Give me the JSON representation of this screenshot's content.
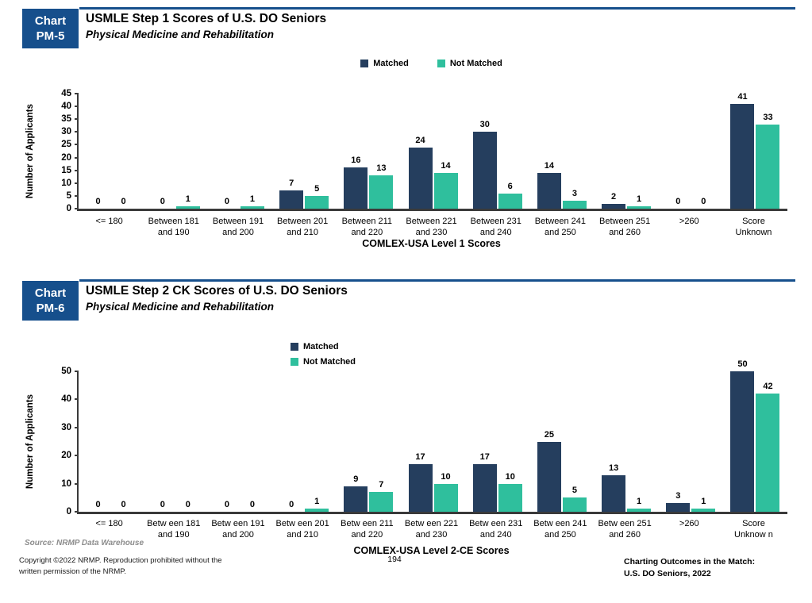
{
  "page": {
    "footer": {
      "source": "Source: NRMP Data Warehouse",
      "copyright": [
        "Copyright ©2022 NRMP. Reproduction prohibited without the",
        "written permission of the NRMP."
      ],
      "right_note": [
        "Charting Outcomes in the Match:",
        "U.S. DO Seniors, 2022"
      ],
      "page_number": "194"
    },
    "colors": {
      "header_blue": "#164F8C",
      "matched": "#253E5E",
      "not_matched": "#2FBF9D",
      "axis": "#3A3A3A"
    }
  },
  "chart_data": [
    {
      "type": "bar",
      "tag_top": "Chart",
      "tag_bottom": "PM-5",
      "title": "USMLE Step 1 Scores of U.S. DO Seniors",
      "subtitle": "Physical Medicine and Rehabilitation",
      "ylabel": "Number of Applicants",
      "xlabel": "COMLEX-USA Level 1 Scores",
      "ylim": [
        0,
        45
      ],
      "ytick_step": 5,
      "grid": false,
      "legend_position": "top-center-horizontal",
      "categories": [
        "<= 180",
        "Between 181 and 190",
        "Between 191 and 200",
        "Between 201 and 210",
        "Between 211 and 220",
        "Between 221 and 230",
        "Between 231 and 240",
        "Between 241 and 250",
        "Between 251 and 260",
        ">260",
        "Score Unknown"
      ],
      "categories_display": [
        [
          "<= 180"
        ],
        [
          "Between 181",
          "and 190"
        ],
        [
          "Between 191",
          "and 200"
        ],
        [
          "Between 201",
          "and 210"
        ],
        [
          "Between 211",
          "and 220"
        ],
        [
          "Between 221",
          "and 230"
        ],
        [
          "Between 231",
          "and 240"
        ],
        [
          "Between 241",
          "and 250"
        ],
        [
          "Between 251",
          "and 260"
        ],
        [
          ">260"
        ],
        [
          "Score",
          "Unknown"
        ]
      ],
      "series": [
        {
          "name": "Matched",
          "color": "#253E5E",
          "values": [
            0,
            0,
            0,
            7,
            16,
            24,
            30,
            14,
            2,
            0,
            41
          ]
        },
        {
          "name": "Not Matched",
          "color": "#2FBF9D",
          "values": [
            0,
            1,
            1,
            5,
            13,
            14,
            6,
            3,
            1,
            0,
            33
          ]
        }
      ]
    },
    {
      "type": "bar",
      "tag_top": "Chart",
      "tag_bottom": "PM-6",
      "title": "USMLE Step 2 CK Scores of U.S. DO Seniors",
      "subtitle": "Physical Medicine and Rehabilitation",
      "ylabel": "Number of Applicants",
      "xlabel": "COMLEX-USA Level 2-CE Scores",
      "ylim": [
        0,
        50
      ],
      "ytick_step": 10,
      "grid": false,
      "legend_position": "top-left-stacked",
      "categories": [
        "<= 180",
        "Betw een 181 and 190",
        "Betw een 191 and 200",
        "Betw een 201 and 210",
        "Betw een 211 and 220",
        "Betw een 221 and 230",
        "Betw een 231 and 240",
        "Betw een 241 and 250",
        "Betw een 251 and 260",
        ">260",
        "Score Unknow n"
      ],
      "categories_display": [
        [
          "<= 180"
        ],
        [
          "Betw een 181",
          "and 190"
        ],
        [
          "Betw een 191",
          "and 200"
        ],
        [
          "Betw een 201",
          "and 210"
        ],
        [
          "Betw een 211",
          "and 220"
        ],
        [
          "Betw een 221",
          "and 230"
        ],
        [
          "Betw een 231",
          "and 240"
        ],
        [
          "Betw een 241",
          "and 250"
        ],
        [
          "Betw een 251",
          "and 260"
        ],
        [
          ">260"
        ],
        [
          "Score",
          "Unknow n"
        ]
      ],
      "series": [
        {
          "name": "Matched",
          "color": "#253E5E",
          "values": [
            0,
            0,
            0,
            0,
            9,
            17,
            17,
            25,
            13,
            3,
            50
          ]
        },
        {
          "name": "Not Matched",
          "color": "#2FBF9D",
          "values": [
            0,
            0,
            0,
            1,
            7,
            10,
            10,
            5,
            1,
            1,
            42
          ]
        }
      ]
    }
  ]
}
